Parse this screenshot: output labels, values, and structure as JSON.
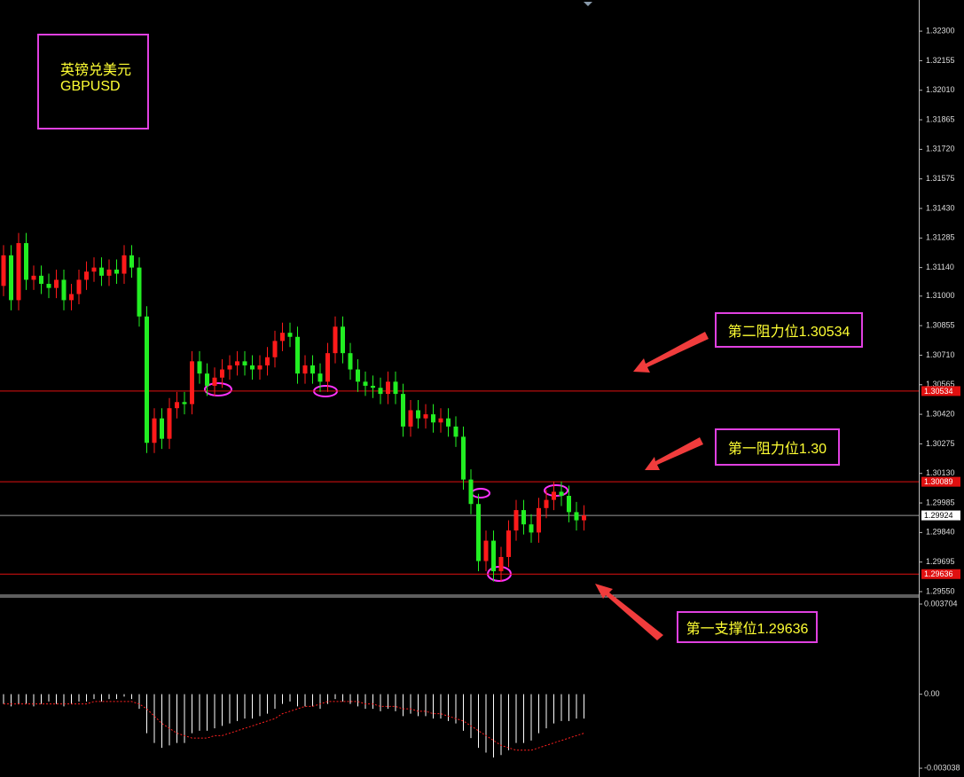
{
  "chart_data": {
    "type": "candlestick",
    "symbol_name": "英镑兑美元",
    "symbol": "GBPUSD",
    "annotations": [
      "第二阻力位1.30534",
      "第一阻力位1.30",
      "第一支撑位1.29636"
    ],
    "up_color": "#ff1a1a",
    "down_color": "#22ee22",
    "open": [
      1.3105,
      1.312,
      1.3098,
      1.3126,
      1.3108,
      1.311,
      1.3106,
      1.3104,
      1.3108,
      1.3098,
      1.3101,
      1.3108,
      1.3112,
      1.3114,
      1.311,
      1.3113,
      1.3111,
      1.312,
      1.3114,
      1.309,
      1.3028,
      1.304,
      1.303,
      1.3045,
      1.3048,
      1.3047,
      1.3068,
      1.3062,
      1.3056,
      1.306,
      1.3064,
      1.3066,
      1.3068,
      1.3066,
      1.3064,
      1.3066,
      1.307,
      1.3078,
      1.3082,
      1.308,
      1.3062,
      1.3066,
      1.3062,
      1.3058,
      1.3072,
      1.3085,
      1.3072,
      1.3064,
      1.3058,
      1.3056,
      1.3055,
      1.3052,
      1.3058,
      1.3052,
      1.3036,
      1.3044,
      1.304,
      1.3042,
      1.3038,
      1.304,
      1.3036,
      1.3031,
      1.301,
      1.2998,
      1.297,
      1.298,
      1.2965,
      1.2972,
      1.2985,
      1.2995,
      1.2988,
      1.2984,
      1.2996,
      1.3,
      1.3004,
      1.3002,
      1.2994,
      1.299
    ],
    "high": [
      1.3125,
      1.3125,
      1.3131,
      1.3131,
      1.3115,
      1.3115,
      1.3111,
      1.3113,
      1.3113,
      1.3106,
      1.3113,
      1.3117,
      1.3119,
      1.3119,
      1.3118,
      1.3118,
      1.3125,
      1.3125,
      1.3119,
      1.3095,
      1.3045,
      1.3045,
      1.305,
      1.3053,
      1.3053,
      1.3073,
      1.3073,
      1.3067,
      1.3065,
      1.3069,
      1.3071,
      1.3073,
      1.3073,
      1.3071,
      1.3071,
      1.3075,
      1.3083,
      1.3087,
      1.3087,
      1.3085,
      1.3071,
      1.3071,
      1.3067,
      1.3077,
      1.309,
      1.309,
      1.3077,
      1.3069,
      1.3063,
      1.3061,
      1.306,
      1.3063,
      1.3063,
      1.3057,
      1.3049,
      1.3049,
      1.3047,
      1.3047,
      1.3045,
      1.3045,
      1.3041,
      1.3036,
      1.3015,
      1.3003,
      1.2985,
      1.2985,
      1.2977,
      1.299,
      1.3,
      1.3,
      1.2993,
      1.3001,
      1.3005,
      1.3009,
      1.3009,
      1.3007,
      1.2999,
      1.29974
    ],
    "low": [
      1.31,
      1.3093,
      1.3093,
      1.3103,
      1.3103,
      1.3101,
      1.3099,
      1.3099,
      1.3093,
      1.3093,
      1.3096,
      1.3103,
      1.3107,
      1.3105,
      1.3105,
      1.3106,
      1.3106,
      1.3109,
      1.3085,
      1.3023,
      1.3023,
      1.3025,
      1.3025,
      1.304,
      1.3042,
      1.3042,
      1.3057,
      1.3051,
      1.3051,
      1.3055,
      1.3059,
      1.3061,
      1.3061,
      1.3059,
      1.3059,
      1.3061,
      1.3065,
      1.3073,
      1.3075,
      1.3057,
      1.3057,
      1.3057,
      1.3053,
      1.3053,
      1.3067,
      1.3067,
      1.3059,
      1.3053,
      1.3051,
      1.305,
      1.3047,
      1.3047,
      1.3047,
      1.3031,
      1.3031,
      1.3035,
      1.3035,
      1.3033,
      1.3033,
      1.3031,
      1.3026,
      1.3005,
      1.2993,
      1.2965,
      1.2965,
      1.296,
      1.296,
      1.2967,
      1.298,
      1.2983,
      1.2979,
      1.2979,
      1.2991,
      1.2995,
      1.2997,
      1.2989,
      1.2985,
      1.2985
    ],
    "close": [
      1.312,
      1.3098,
      1.3126,
      1.3108,
      1.311,
      1.3106,
      1.3104,
      1.3108,
      1.3098,
      1.3101,
      1.3108,
      1.3112,
      1.3114,
      1.311,
      1.3113,
      1.3111,
      1.312,
      1.3114,
      1.309,
      1.3028,
      1.304,
      1.303,
      1.3045,
      1.3048,
      1.3047,
      1.3068,
      1.3062,
      1.3056,
      1.306,
      1.3064,
      1.3066,
      1.3068,
      1.3066,
      1.3064,
      1.3066,
      1.307,
      1.3078,
      1.3082,
      1.308,
      1.3062,
      1.3066,
      1.3062,
      1.3058,
      1.3072,
      1.3085,
      1.3072,
      1.3064,
      1.3058,
      1.3056,
      1.3055,
      1.3052,
      1.3058,
      1.3052,
      1.3036,
      1.3044,
      1.304,
      1.3042,
      1.3038,
      1.304,
      1.3036,
      1.3031,
      1.301,
      1.2998,
      1.297,
      1.298,
      1.2965,
      1.2972,
      1.2985,
      1.2995,
      1.2988,
      1.2984,
      1.2996,
      1.3,
      1.3004,
      1.3002,
      1.2994,
      1.299,
      1.29924
    ],
    "ylim": [
      1.29537,
      1.32444
    ],
    "yticks": [
      {
        "value": 1.323,
        "label": "1.32300"
      },
      {
        "value": 1.32155,
        "label": "1.32155"
      },
      {
        "value": 1.3201,
        "label": "1.32010"
      },
      {
        "value": 1.31865,
        "label": "1.31865"
      },
      {
        "value": 1.3172,
        "label": "1.31720"
      },
      {
        "value": 1.31575,
        "label": "1.31575"
      },
      {
        "value": 1.3143,
        "label": "1.31430"
      },
      {
        "value": 1.31285,
        "label": "1.31285"
      },
      {
        "value": 1.3114,
        "label": "1.31140"
      },
      {
        "value": 1.31,
        "label": "1.31000"
      },
      {
        "value": 1.30855,
        "label": "1.30855"
      },
      {
        "value": 1.3071,
        "label": "1.30710"
      },
      {
        "value": 1.30565,
        "label": "1.30565"
      },
      {
        "value": 1.3042,
        "label": "1.30420"
      },
      {
        "value": 1.30275,
        "label": "1.30275"
      },
      {
        "value": 1.3013,
        "label": "1.30130"
      },
      {
        "value": 1.29985,
        "label": "1.29985"
      },
      {
        "value": 1.2984,
        "label": "1.29840"
      },
      {
        "value": 1.29695,
        "label": "1.29695"
      },
      {
        "value": 1.2955,
        "label": "1.29550"
      }
    ],
    "levels": [
      1.30534,
      1.30089,
      1.29636
    ],
    "level_color": "#e01010",
    "current_price": 1.29924,
    "indicator": {
      "type": "macd",
      "histogram": [
        -0.0004,
        -0.0005,
        -0.0004,
        -0.0004,
        -0.0005,
        -0.0004,
        -0.0003,
        -0.0004,
        -0.0005,
        -0.0004,
        -0.0003,
        -0.0003,
        -0.0002,
        -0.0003,
        -0.0002,
        -0.0002,
        -0.0001,
        -0.0002,
        -0.0006,
        -0.0016,
        -0.002,
        -0.0022,
        -0.0021,
        -0.002,
        -0.002,
        -0.0016,
        -0.0015,
        -0.0015,
        -0.0014,
        -0.0013,
        -0.0012,
        -0.0011,
        -0.001,
        -0.001,
        -0.0009,
        -0.0008,
        -0.0006,
        -0.0004,
        -0.0003,
        -0.0005,
        -0.0005,
        -0.0005,
        -0.0006,
        -0.0004,
        -0.0002,
        -0.0003,
        -0.0004,
        -0.0005,
        -0.0006,
        -0.0006,
        -0.0007,
        -0.0006,
        -0.0007,
        -0.0009,
        -0.0008,
        -0.0009,
        -0.0009,
        -0.001,
        -0.001,
        -0.0011,
        -0.0012,
        -0.0015,
        -0.0018,
        -0.0022,
        -0.0024,
        -0.0026,
        -0.0025,
        -0.0023,
        -0.002,
        -0.002,
        -0.0019,
        -0.0016,
        -0.0014,
        -0.0012,
        -0.0011,
        -0.0011,
        -0.001,
        -0.001
      ],
      "signal": [
        -0.0004,
        -0.0004,
        -0.0004,
        -0.0004,
        -0.0004,
        -0.0004,
        -0.0004,
        -0.0004,
        -0.0004,
        -0.0004,
        -0.0004,
        -0.0004,
        -0.0003,
        -0.0003,
        -0.0003,
        -0.0003,
        -0.0003,
        -0.0003,
        -0.0004,
        -0.0006,
        -0.0009,
        -0.0012,
        -0.0014,
        -0.0016,
        -0.0017,
        -0.0018,
        -0.0018,
        -0.0018,
        -0.0017,
        -0.0017,
        -0.0016,
        -0.0015,
        -0.0014,
        -0.0013,
        -0.0012,
        -0.0011,
        -0.001,
        -0.0008,
        -0.0007,
        -0.0006,
        -0.0005,
        -0.0005,
        -0.0004,
        -0.0003,
        -0.0003,
        -0.0003,
        -0.0003,
        -0.0003,
        -0.0004,
        -0.0004,
        -0.0005,
        -0.0005,
        -0.0005,
        -0.0006,
        -0.0006,
        -0.0007,
        -0.0007,
        -0.0008,
        -0.0008,
        -0.0009,
        -0.001,
        -0.0011,
        -0.0013,
        -0.0015,
        -0.0017,
        -0.0019,
        -0.0021,
        -0.0022,
        -0.0023,
        -0.0023,
        -0.0023,
        -0.0022,
        -0.0021,
        -0.002,
        -0.0019,
        -0.0018,
        -0.0017,
        -0.0016
      ],
      "histogram_color": "#ffffff",
      "signal_color": "#ff2020",
      "ylim": [
        -0.0034,
        0.00396
      ],
      "yticks": [
        0.003704,
        {
          "value": 0,
          "label": "0.00"
        },
        -0.003038
      ]
    }
  }
}
